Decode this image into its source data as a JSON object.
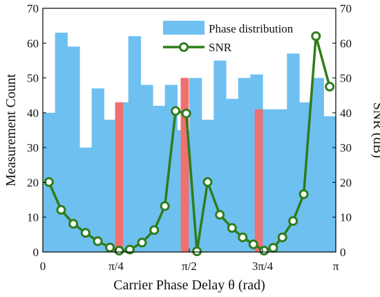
{
  "chart_data": {
    "type": "bar",
    "xlabel": "Carrier Phase Delay θ (rad)",
    "ylabel_left": "Measurement Count",
    "ylabel_right": "SNR (dB)",
    "xlim": [
      0,
      3.14159
    ],
    "ylim_left": [
      0,
      70
    ],
    "ylim_right": [
      0,
      70
    ],
    "x_ticks": [
      {
        "value": 0,
        "label": "0"
      },
      {
        "value": 0.7854,
        "label": "π/4"
      },
      {
        "value": 1.5708,
        "label": "π/2"
      },
      {
        "value": 2.3562,
        "label": "3π/4"
      },
      {
        "value": 3.14159,
        "label": "π"
      }
    ],
    "y_ticks_left": [
      0,
      10,
      20,
      30,
      40,
      50,
      60,
      70
    ],
    "y_ticks_right": [
      0,
      10,
      20,
      30,
      40,
      50,
      60,
      70
    ],
    "legend_position": "top-right",
    "grid": false,
    "colors": {
      "phase_bars": "#6ec0f0",
      "highlight_bars": "#f07070",
      "snr_line": "#2e7d1a",
      "snr_marker_fill": "#ffffff"
    },
    "series": [
      {
        "name": "Phase distribution",
        "type": "bar",
        "bin_width": 0.1309,
        "x": [
          0.0654,
          0.1963,
          0.3272,
          0.4581,
          0.589,
          0.7199,
          0.8508,
          0.9817,
          1.1126,
          1.2435,
          1.3744,
          1.5053,
          1.6362,
          1.7671,
          1.898,
          2.0289,
          2.1598,
          2.2907,
          2.4216,
          2.5525,
          2.6834,
          2.8143,
          2.9452,
          3.0761
        ],
        "values": [
          40,
          63,
          59,
          30,
          47,
          38,
          43,
          62,
          48,
          42,
          48,
          35,
          50,
          38,
          55,
          44,
          50,
          51,
          41,
          41,
          57,
          43,
          50,
          39
        ]
      },
      {
        "name": "",
        "type": "bar",
        "bin_width": 0.1309,
        "x": [
          0.8181,
          1.5217,
          2.3153
        ],
        "values": [
          43,
          50,
          41
        ]
      },
      {
        "name": "SNR",
        "type": "line",
        "x": [
          0.0654,
          0.1963,
          0.3272,
          0.4581,
          0.589,
          0.7199,
          0.8181,
          0.9326,
          1.0635,
          1.1944,
          1.3089,
          1.4235,
          1.5381,
          1.6526,
          1.7671,
          1.898,
          2.0289,
          2.1434,
          2.258,
          2.3725,
          2.4707,
          2.5689,
          2.6834,
          2.798,
          2.9289,
          3.0761
        ],
        "values": [
          20.1,
          12.1,
          8.1,
          5.5,
          3.1,
          1.3,
          0.4,
          0.7,
          2.7,
          6.3,
          13.2,
          40.5,
          39.8,
          0.2,
          20.1,
          10.7,
          6.9,
          4.2,
          2.2,
          0.4,
          1.2,
          4.2,
          8.9,
          16.6,
          62.0,
          47.5
        ]
      }
    ]
  }
}
